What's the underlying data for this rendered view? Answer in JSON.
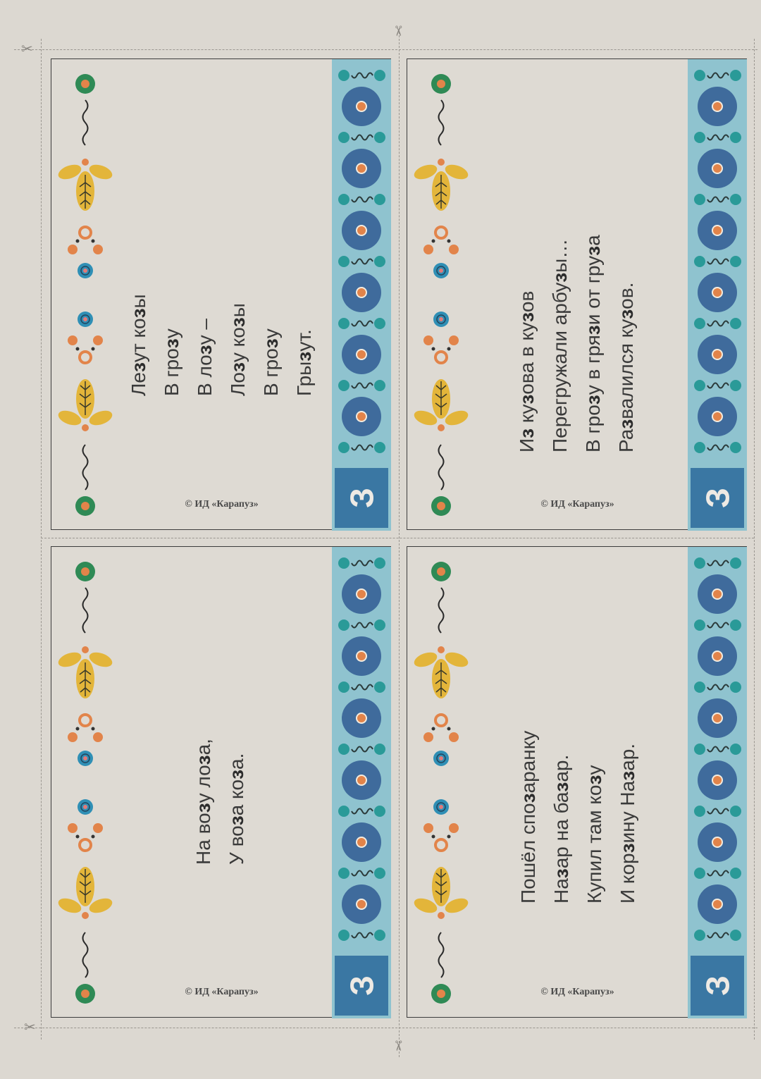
{
  "colors": {
    "paper": "#dcd8d1",
    "stripe": "#8fc3cf",
    "big_circle": "#3f6b9c",
    "teal": "#2a9a98",
    "orange": "#e2844a",
    "badge": "#3a77a3",
    "green": "#2f8a55",
    "yellow": "#e3b53a",
    "blue": "#2f8fb5"
  },
  "icons": {
    "cut": "scissors-icon"
  },
  "cards": [
    {
      "letter": "З",
      "copyright": "© ИД «Карапуз»",
      "lines": [
        "Лезут козы",
        "В грозу",
        "В лозу –",
        "Лозу козы",
        "В грозу",
        "Грызут."
      ]
    },
    {
      "letter": "З",
      "copyright": "© ИД «Карапуз»",
      "lines": [
        "Из кузова в кузов",
        "Перегружали арбузы…",
        "В грозу в грязи от груза",
        "Развалился кузов."
      ]
    },
    {
      "letter": "З",
      "copyright": "© ИД «Карапуз»",
      "lines": [
        "На возу лоза,",
        "У воза коза."
      ]
    },
    {
      "letter": "З",
      "copyright": "© ИД «Карапуз»",
      "lines": [
        "Пошёл спозаранку",
        "Назар на базар.",
        "Купил там козу",
        "И корзину Назар."
      ]
    }
  ]
}
